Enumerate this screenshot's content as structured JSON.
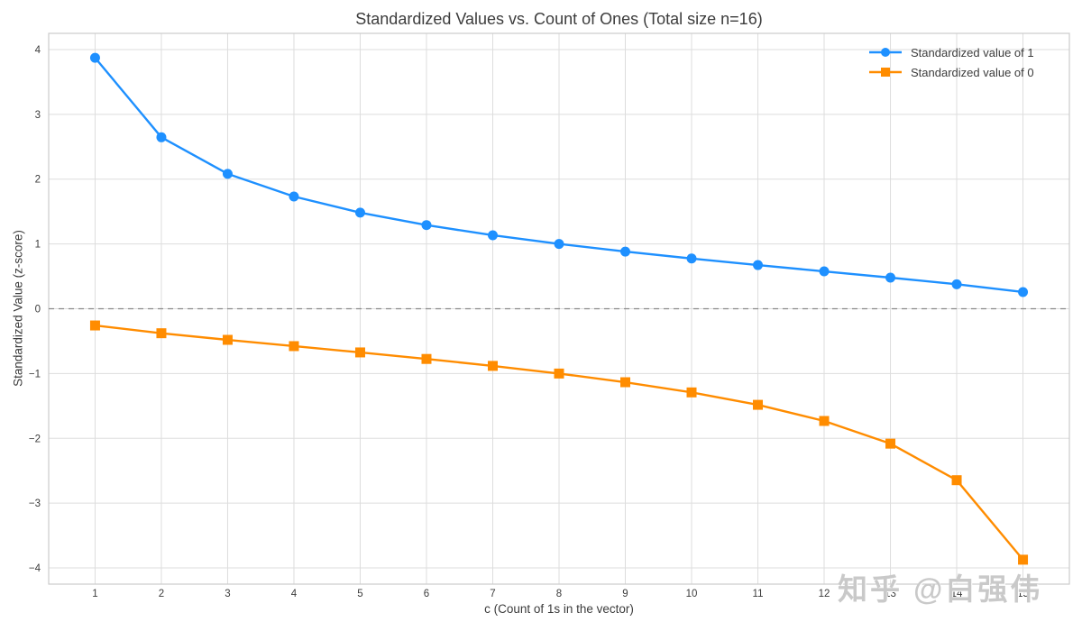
{
  "chart_data": {
    "type": "line",
    "title": "Standardized Values vs. Count of Ones (Total size n=16)",
    "xlabel": "c (Count of 1s in the vector)",
    "ylabel": "Standardized Value (z-score)",
    "x": [
      1,
      2,
      3,
      4,
      5,
      6,
      7,
      8,
      9,
      10,
      11,
      12,
      13,
      14,
      15
    ],
    "series": [
      {
        "name": "Standardized value of 1",
        "color": "#1E90FF",
        "marker": "circle",
        "values": [
          3.873,
          2.646,
          2.082,
          1.732,
          1.483,
          1.291,
          1.134,
          1.0,
          0.882,
          0.775,
          0.674,
          0.577,
          0.48,
          0.378,
          0.258
        ]
      },
      {
        "name": "Standardized value of 0",
        "color": "#FF8C00",
        "marker": "square",
        "values": [
          -0.258,
          -0.378,
          -0.48,
          -0.577,
          -0.674,
          -0.775,
          -0.882,
          -1.0,
          -1.134,
          -1.291,
          -1.483,
          -1.732,
          -2.082,
          -2.646,
          -3.873
        ]
      }
    ],
    "xlim": [
      0.3,
      15.7
    ],
    "ylim": [
      -4.25,
      4.25
    ],
    "xticks": [
      1,
      2,
      3,
      4,
      5,
      6,
      7,
      8,
      9,
      10,
      11,
      12,
      13,
      14,
      15
    ],
    "yticks": [
      -4,
      -3,
      -2,
      -1,
      0,
      1,
      2,
      3,
      4
    ],
    "grid": true,
    "grid_color": "#dddddd",
    "spine_color": "#cccccc",
    "tick_label_color": "#3c3c3c",
    "legend_position": "upper right",
    "zero_line": {
      "y": 0,
      "style": "dashed",
      "color": "#8a8a8a"
    }
  },
  "watermark": {
    "text": "知乎 @白强伟",
    "color": "#c9c9c9"
  }
}
